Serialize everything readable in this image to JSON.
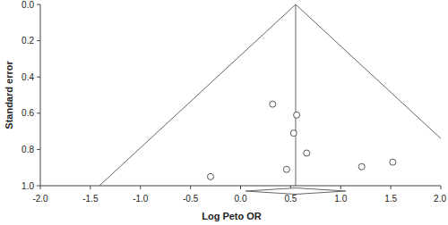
{
  "chart_data": {
    "type": "scatter",
    "x_label": "Log Peto OR",
    "y_label": "Standard error",
    "x": [
      0.32,
      0.56,
      0.53,
      0.66,
      0.46,
      -0.3,
      1.21,
      1.52
    ],
    "values": [
      0.55,
      0.61,
      0.71,
      0.82,
      0.91,
      0.95,
      0.895,
      0.87
    ],
    "color": "#555555",
    "marker": "circle",
    "pooled_estimate": 0.55,
    "pooled_ci": [
      0.05,
      1.05
    ],
    "funnel_lines": [
      {
        "x": [
          0.55,
          -1.41
        ],
        "y": [
          0,
          1
        ]
      },
      {
        "x": [
          0.55,
          2.51
        ],
        "y": [
          0,
          1
        ]
      }
    ],
    "xlim": [
      -2.0,
      2.0
    ],
    "ylim": [
      0,
      1
    ],
    "xticks": [
      {
        "value": -2.0,
        "label": "-2.0"
      },
      {
        "value": -1.5,
        "label": "-1.5"
      },
      {
        "value": -1.0,
        "label": "-1.0"
      },
      {
        "value": -0.5,
        "label": "-0.5"
      },
      {
        "value": 0,
        "label": "0.0"
      },
      {
        "value": 0.5,
        "label": "0.5"
      },
      {
        "value": 1.0,
        "label": "1.0"
      },
      {
        "value": 1.5,
        "label": "1.5"
      },
      {
        "value": 2.0,
        "label": "2.0"
      }
    ],
    "yticks": [
      {
        "value": 0,
        "label": "0.0"
      },
      {
        "value": 0.2,
        "label": "0.2"
      },
      {
        "value": 0.4,
        "label": "0.4"
      },
      {
        "value": 0.6,
        "label": "0.6"
      },
      {
        "value": 0.8,
        "label": "0.8"
      },
      {
        "value": 1.0,
        "label": "1.0"
      }
    ],
    "grid": false
  }
}
